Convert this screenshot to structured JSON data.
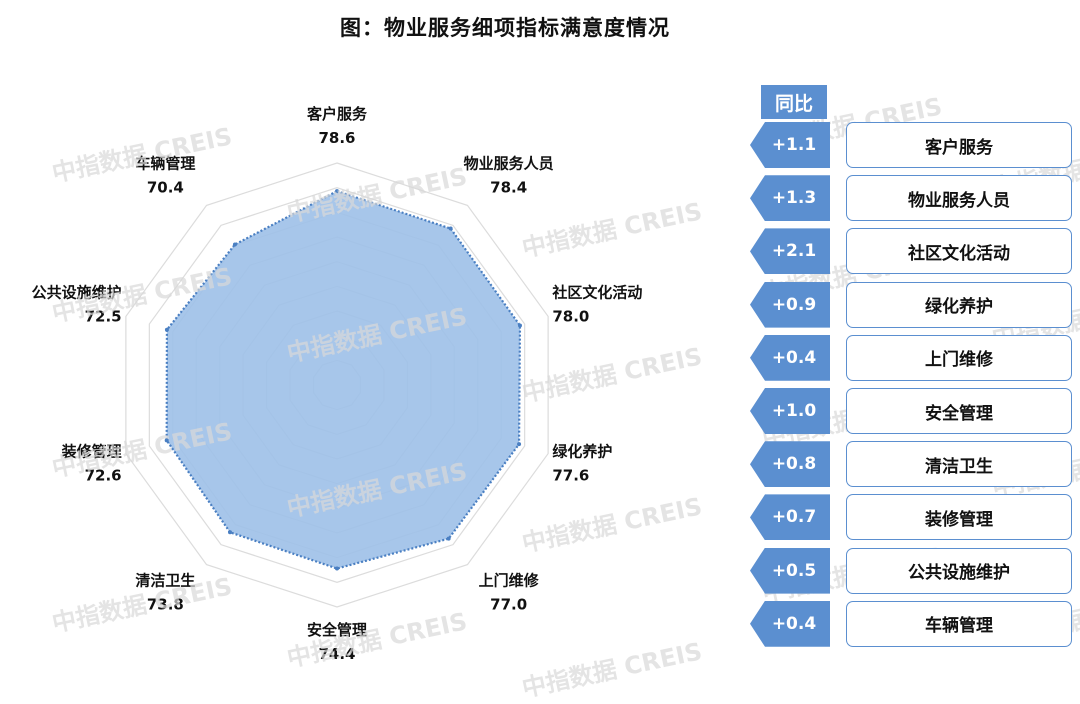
{
  "title": "图：物业服务细项指标满意度情况",
  "watermark": "中指数据 CREIS",
  "yoy_header": "同比",
  "colors": {
    "accent": "#5b8fd0",
    "fill": "#9dc0e8",
    "grid": "#dcdcdc"
  },
  "chart_data": {
    "type": "radar",
    "title": "图：物业服务细项指标满意度情况",
    "categories": [
      "客户服务",
      "物业服务人员",
      "社区文化活动",
      "绿化养护",
      "上门维修",
      "安全管理",
      "清洁卫生",
      "装修管理",
      "公共设施维护",
      "车辆管理"
    ],
    "values": [
      78.6,
      78.4,
      78.0,
      77.6,
      77.0,
      74.4,
      73.8,
      72.6,
      72.5,
      70.4
    ],
    "yoy": [
      "+1.1",
      "+1.3",
      "+2.1",
      "+0.9",
      "+0.4",
      "+1.0",
      "+0.8",
      "+0.7",
      "+0.5",
      "+0.4"
    ],
    "rlim": [
      0,
      90
    ],
    "grid": true
  },
  "yoy_items": [
    {
      "label": "客户服务",
      "delta": "+1.1"
    },
    {
      "label": "物业服务人员",
      "delta": "+1.3"
    },
    {
      "label": "社区文化活动",
      "delta": "+2.1"
    },
    {
      "label": "绿化养护",
      "delta": "+0.9"
    },
    {
      "label": "上门维修",
      "delta": "+0.4"
    },
    {
      "label": "安全管理",
      "delta": "+1.0"
    },
    {
      "label": "清洁卫生",
      "delta": "+0.8"
    },
    {
      "label": "装修管理",
      "delta": "+0.7"
    },
    {
      "label": "公共设施维护",
      "delta": "+0.5"
    },
    {
      "label": "车辆管理",
      "delta": "+0.4"
    }
  ]
}
